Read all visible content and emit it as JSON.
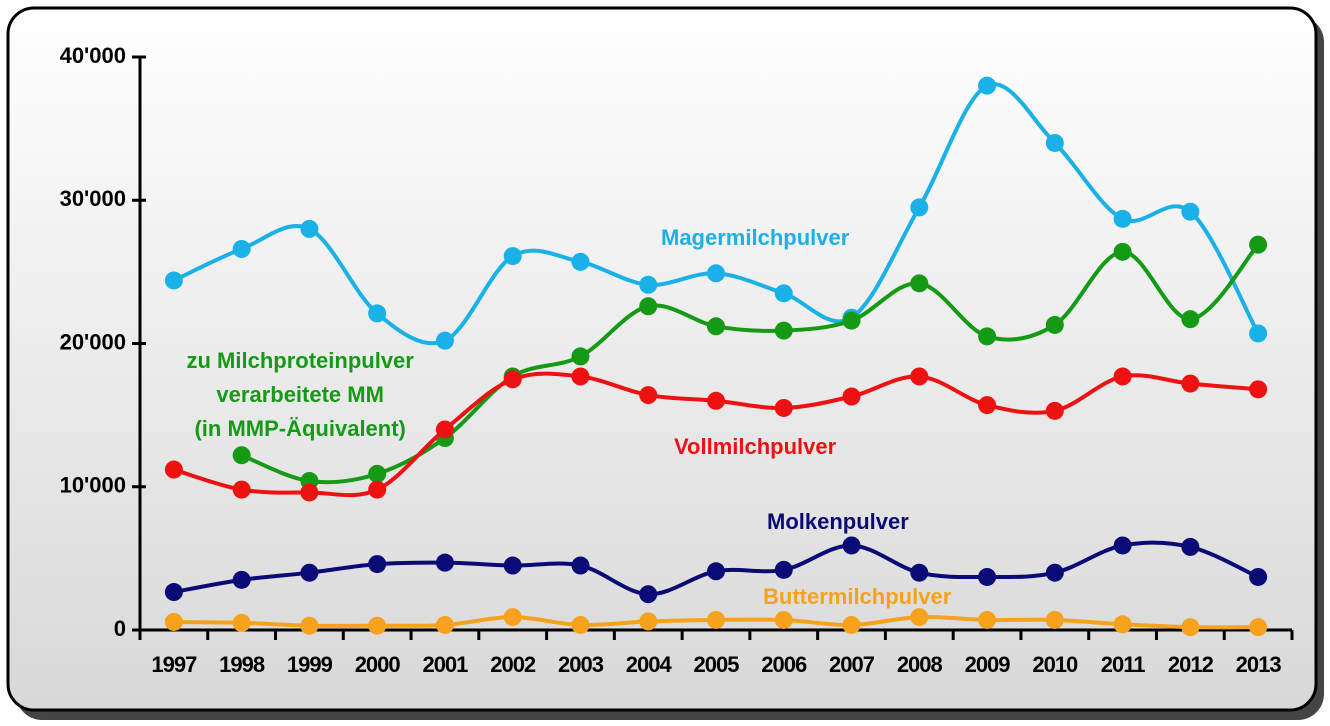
{
  "chart_data": {
    "type": "line",
    "categories": [
      "1997",
      "1998",
      "1999",
      "2000",
      "2001",
      "2002",
      "2003",
      "2004",
      "2005",
      "2006",
      "2007",
      "2008",
      "2009",
      "2010",
      "2011",
      "2012",
      "2013"
    ],
    "series": [
      {
        "name": "Magermilchpulver",
        "color": "#1ab0e8",
        "values": [
          24400,
          26600,
          28000,
          22100,
          20200,
          26100,
          25700,
          24100,
          24900,
          23500,
          21800,
          29500,
          38000,
          34000,
          28700,
          29200,
          20700
        ]
      },
      {
        "name": "zu Milchproteinpulver\nverarbeitete MM\n(in MMP-Äquivalent)",
        "color": "#159a15",
        "values": [
          null,
          12200,
          10400,
          10900,
          13400,
          17700,
          19100,
          22600,
          21200,
          20900,
          21600,
          24200,
          20500,
          21300,
          26400,
          21700,
          26900
        ]
      },
      {
        "name": "Vollmilchpulver",
        "color": "#ee1111",
        "values": [
          11200,
          9800,
          9600,
          9800,
          14000,
          17500,
          17700,
          16400,
          16000,
          15500,
          16300,
          17700,
          15700,
          15300,
          17700,
          17200,
          16800
        ]
      },
      {
        "name": "Molkenpulver",
        "color": "#0b0b78",
        "values": [
          2650,
          3500,
          4000,
          4600,
          4700,
          4500,
          4500,
          2500,
          4100,
          4200,
          5900,
          4000,
          3700,
          4000,
          5900,
          5800,
          3700
        ]
      },
      {
        "name": "Buttermilchpulver",
        "color": "#f7a21c",
        "values": [
          560,
          500,
          300,
          300,
          350,
          900,
          350,
          600,
          700,
          700,
          350,
          900,
          700,
          700,
          400,
          200,
          200
        ]
      }
    ],
    "ylim": [
      0,
      40000
    ],
    "yticks": [
      0,
      {
        "value": 10000,
        "label": "10'000"
      },
      {
        "value": 20000,
        "label": "20'000"
      },
      {
        "value": 30000,
        "label": "30'000"
      },
      {
        "value": 40000,
        "label": "40'000"
      }
    ],
    "grid": false
  }
}
